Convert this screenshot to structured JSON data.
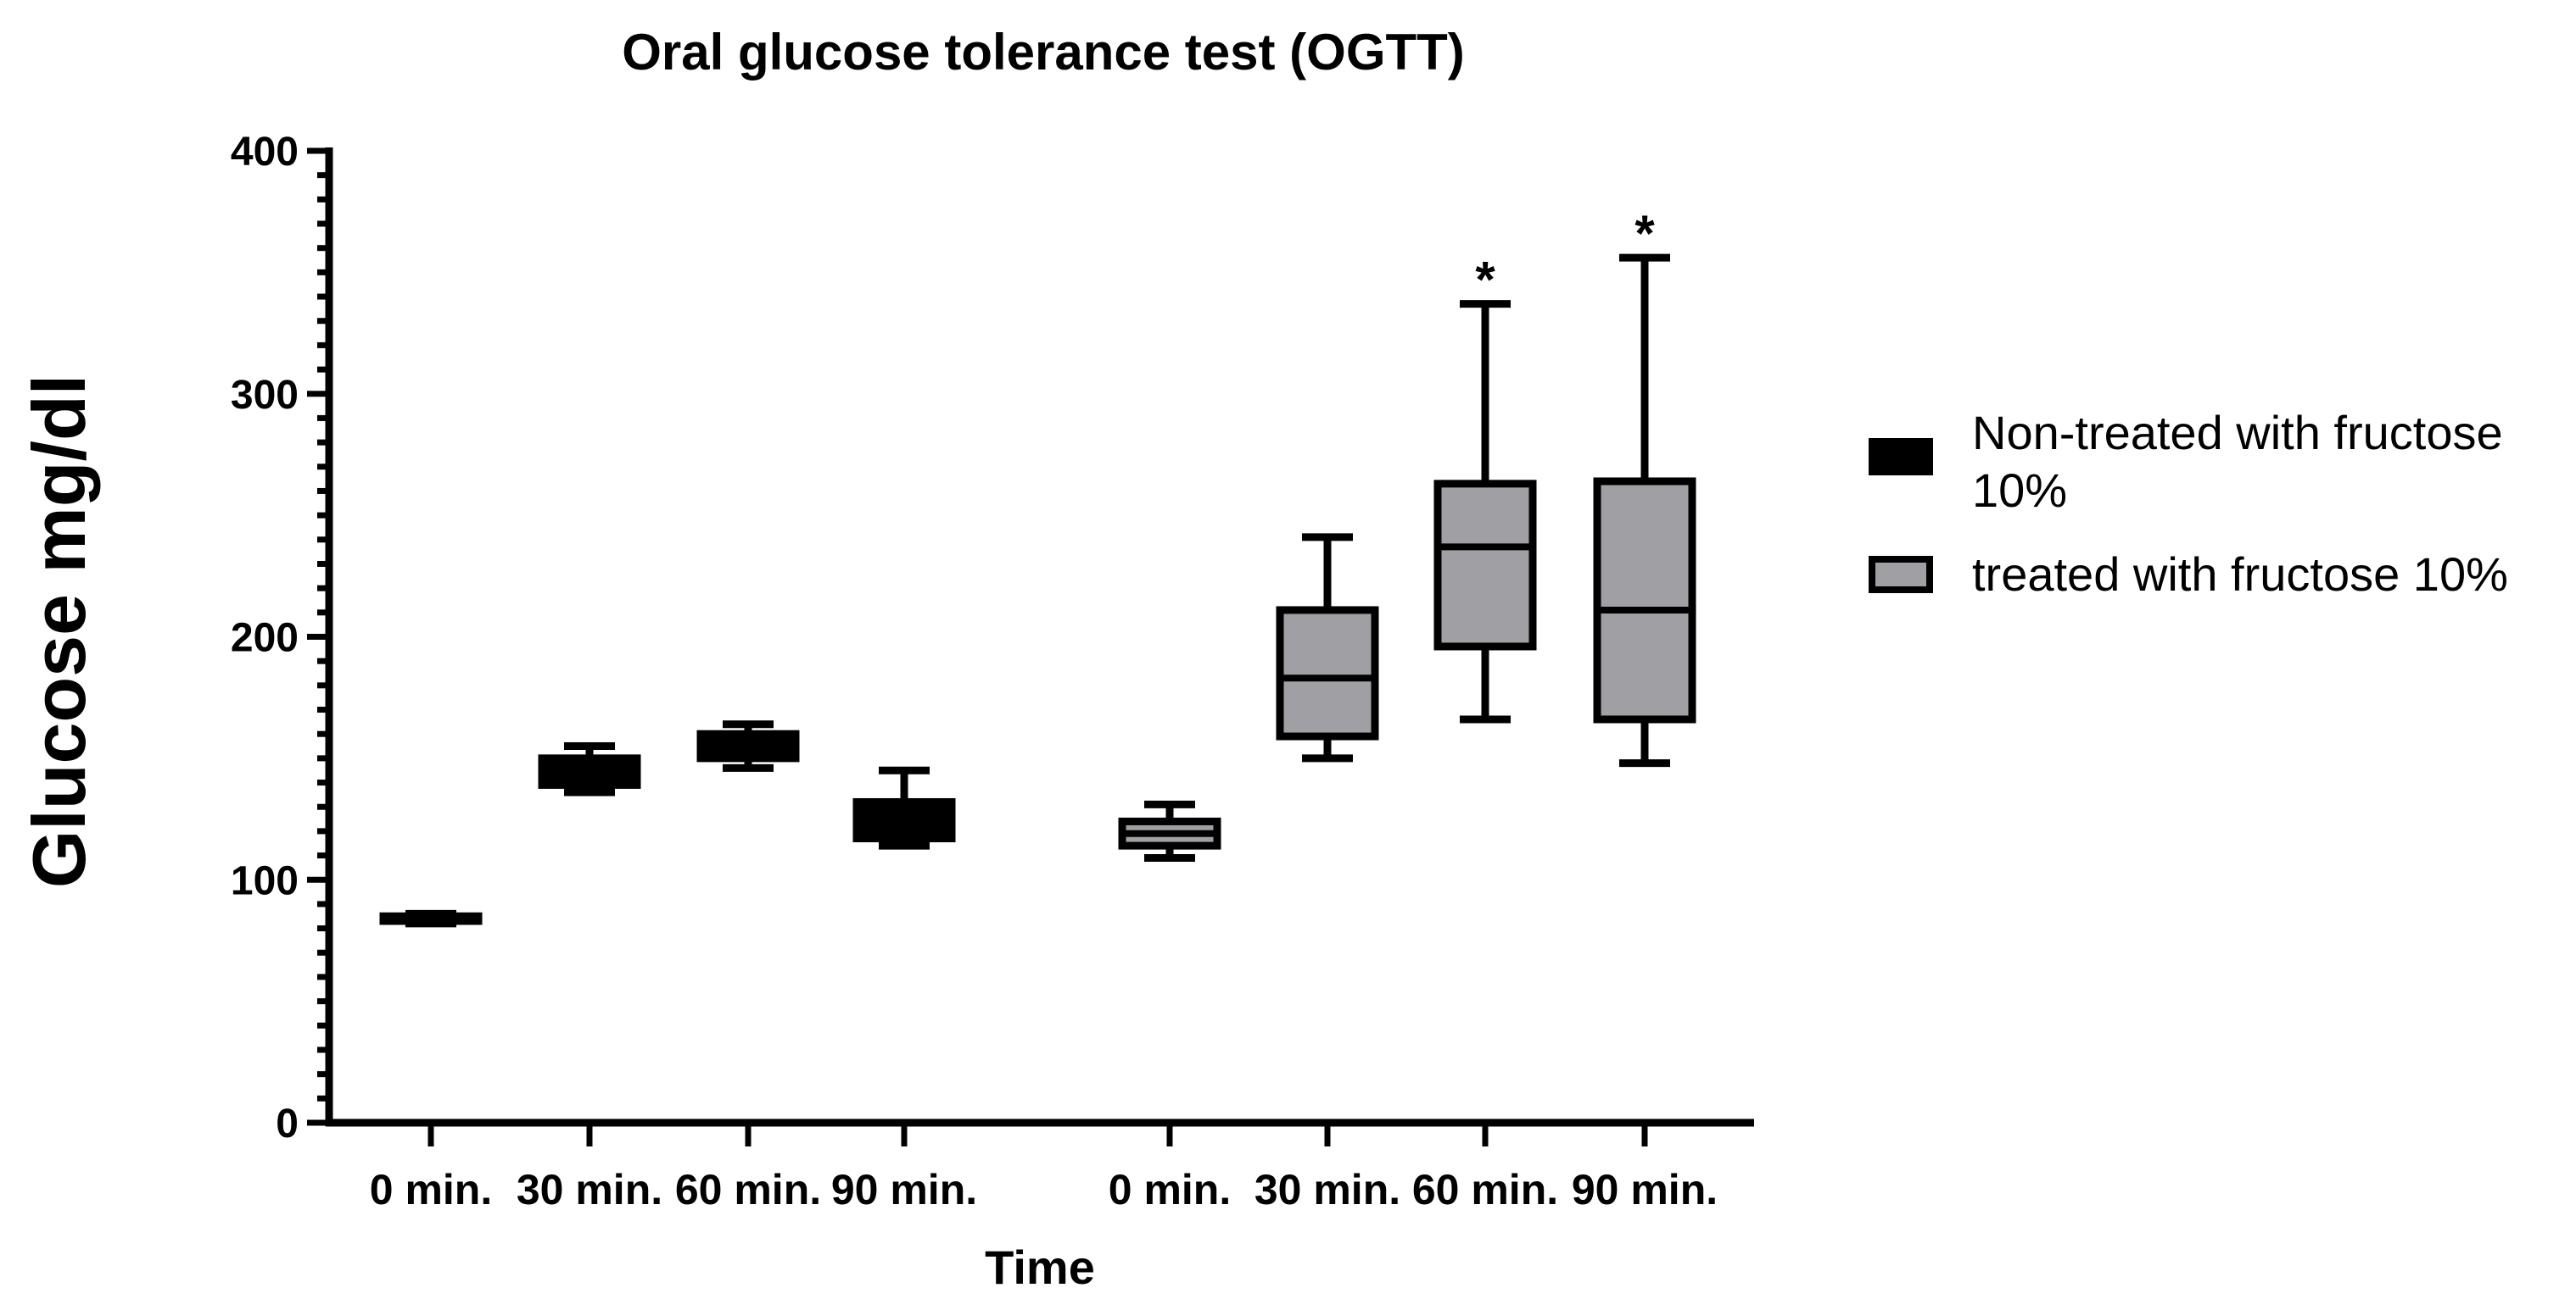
{
  "chart_data": {
    "type": "box",
    "title": "Oral glucose tolerance test (OGTT)",
    "xlabel": "Time",
    "ylabel": "Glucose mg/dl",
    "ylim": [
      0,
      400
    ],
    "yticks": [
      0,
      100,
      200,
      300,
      400
    ],
    "grid": false,
    "legend_position": "right",
    "groups": [
      {
        "name": "Non-treated with fructose 10%",
        "fill": "#000000",
        "categories": [
          "0 min.",
          "30 min.",
          "60 min.",
          "90 min."
        ],
        "boxes": [
          {
            "min": 82,
            "q1": 83,
            "median": 84,
            "q3": 85,
            "max": 86,
            "annotation": ""
          },
          {
            "min": 136,
            "q1": 139,
            "median": 145,
            "q3": 150,
            "max": 155,
            "annotation": ""
          },
          {
            "min": 146,
            "q1": 150,
            "median": 155,
            "q3": 160,
            "max": 164,
            "annotation": ""
          },
          {
            "min": 114,
            "q1": 117,
            "median": 125,
            "q3": 132,
            "max": 145,
            "annotation": ""
          }
        ]
      },
      {
        "name": "treated with fructose 10%",
        "fill": "#a09fa4",
        "categories": [
          "0 min.",
          "30 min.",
          "60 min.",
          "90 min."
        ],
        "boxes": [
          {
            "min": 109,
            "q1": 114,
            "median": 119,
            "q3": 124,
            "max": 131,
            "annotation": ""
          },
          {
            "min": 150,
            "q1": 159,
            "median": 183,
            "q3": 211,
            "max": 241,
            "annotation": ""
          },
          {
            "min": 166,
            "q1": 196,
            "median": 237,
            "q3": 263,
            "max": 337,
            "annotation": "*"
          },
          {
            "min": 148,
            "q1": 166,
            "median": 211,
            "q3": 264,
            "max": 356,
            "annotation": "*"
          }
        ]
      }
    ]
  }
}
